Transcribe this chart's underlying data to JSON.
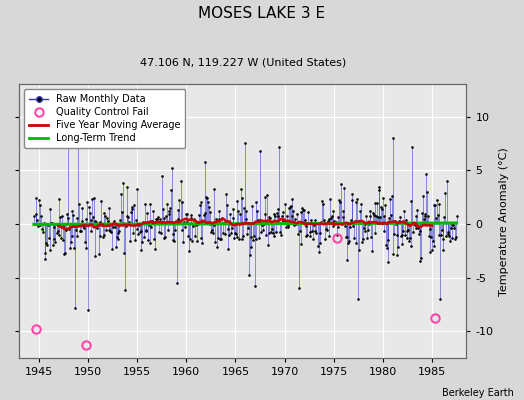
{
  "title": "MOSES LAKE 3 E",
  "subtitle": "47.106 N, 119.227 W (United States)",
  "ylabel": "Temperature Anomaly (°C)",
  "credit": "Berkeley Earth",
  "xlim": [
    1943.0,
    1988.5
  ],
  "ylim": [
    -12.5,
    13.0
  ],
  "yticks": [
    -10,
    -5,
    0,
    5,
    10
  ],
  "xticks": [
    1945,
    1950,
    1955,
    1960,
    1965,
    1970,
    1975,
    1980,
    1985
  ],
  "bg_color": "#d8d8d8",
  "plot_bg_color": "#e8e8e8",
  "grid_color": "#ffffff",
  "raw_line_color": "#3333cc",
  "raw_marker_color": "#000000",
  "moving_avg_color": "#cc0000",
  "trend_color": "#00bb00",
  "qc_fail_color": "#ff44aa",
  "seed": 42,
  "start_year": 1944.5,
  "end_year": 1987.5,
  "n_months": 516,
  "qc_fail_points": [
    [
      1944.7,
      -9.8
    ],
    [
      1949.8,
      -11.3
    ],
    [
      1975.3,
      -1.3
    ],
    [
      1985.3,
      -8.8
    ]
  ]
}
